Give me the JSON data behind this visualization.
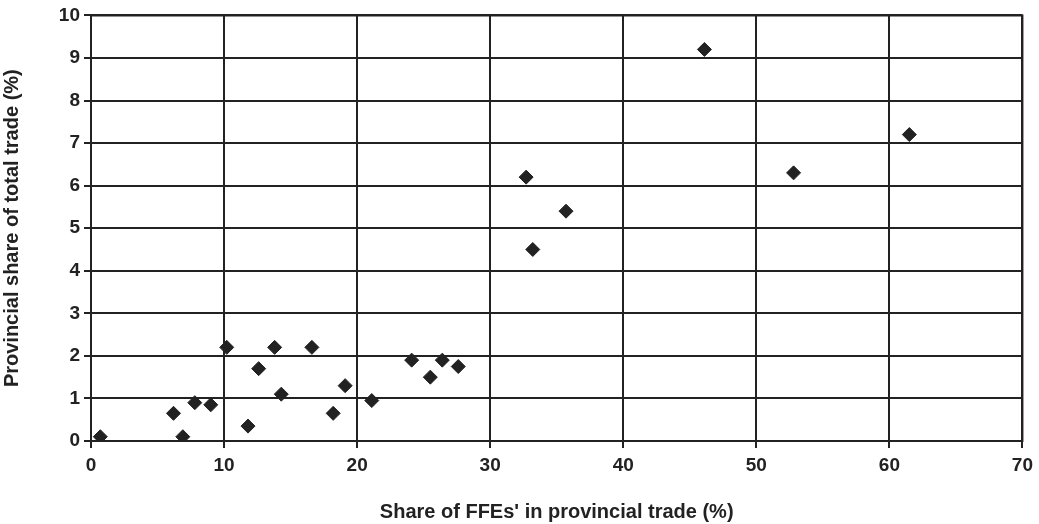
{
  "chart_data": {
    "type": "scatter",
    "xlabel": "Share of FFEs' in provincial trade (%)",
    "ylabel": "Provincial share of total trade (%)",
    "x": [
      0.7,
      6.2,
      6.9,
      7.8,
      9.0,
      10.2,
      11.8,
      12.6,
      13.8,
      14.3,
      16.6,
      18.2,
      19.1,
      21.1,
      24.1,
      25.5,
      26.4,
      27.6,
      32.7,
      33.2,
      35.7,
      46.1,
      52.8,
      61.5
    ],
    "values": [
      0.1,
      0.65,
      0.1,
      0.9,
      0.85,
      2.2,
      0.35,
      1.7,
      2.2,
      1.1,
      2.2,
      0.65,
      1.3,
      0.95,
      1.9,
      1.5,
      1.9,
      1.75,
      6.2,
      4.5,
      5.4,
      9.2,
      6.3,
      7.2
    ],
    "color": "#222222",
    "marker": "diamond",
    "xlim": [
      0,
      70
    ],
    "xticks": [
      0,
      10,
      20,
      30,
      40,
      50,
      60,
      70
    ],
    "ylim": [
      0,
      10
    ],
    "yticks": [
      0,
      1,
      2,
      3,
      4,
      5,
      6,
      7,
      8,
      9,
      10
    ],
    "grid": true
  }
}
